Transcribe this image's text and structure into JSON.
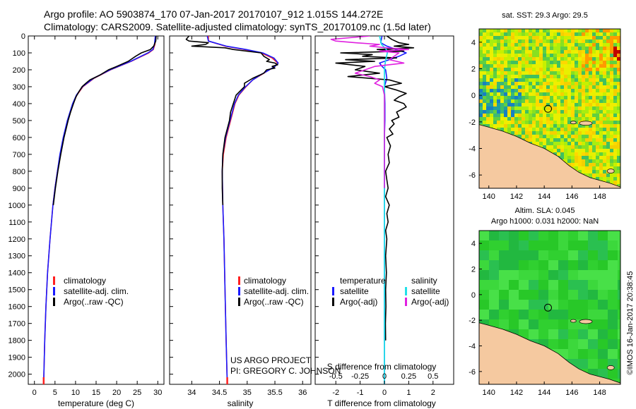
{
  "header": {
    "line1": "Argo profile: AO 5903874_170 07-Jan-2017 20170107_912 1.015S 144.272E",
    "line2": "Climatology: CARS2009. Satellite-adjusted climatology: synTS_20170109.nc (1.5d later)"
  },
  "colors": {
    "climatology": "#ff2020",
    "satellite": "#1a1aff",
    "argo": "#000000",
    "satellite_s": "#22e0e8",
    "argo_s": "#e020e0",
    "land": "#f5c9a0"
  },
  "depth_axis": {
    "ticks": [
      0,
      100,
      200,
      300,
      400,
      500,
      600,
      700,
      800,
      900,
      1000,
      1100,
      1200,
      1300,
      1400,
      1500,
      1600,
      1700,
      1800,
      1900,
      2000
    ],
    "range": [
      0,
      2060
    ]
  },
  "legend1": {
    "items": [
      "climatology",
      "satellite-adj. clim.",
      "Argo(..raw -QC)"
    ]
  },
  "legend2": {
    "items": [
      "climatology",
      "satellite-adj. clim.",
      "Argo(..raw -QC)"
    ]
  },
  "legend3": {
    "temperature_title": "temperature",
    "salinity_title": "salinity",
    "t_items": [
      "satellite",
      "Argo(-adj)"
    ],
    "s_items": [
      "satellite",
      "Argo(-adj)"
    ]
  },
  "credits": {
    "line1": "US ARGO PROJECT",
    "line2": "PI: GREGORY C. JOHNSON"
  },
  "maps": {
    "sst_title": "sat. SST: 29.3 Argo: 29.5",
    "sla_title1": "Altim. SLA: 0.045",
    "sla_title2": "Argo h1000: 0.031 h2000: NaN",
    "lon_ticks": [
      "140",
      "142",
      "144",
      "146",
      "148"
    ],
    "lon_range": [
      139.3,
      149.5
    ],
    "lat_ticks": [
      "4",
      "2",
      "0",
      "-2",
      "-4",
      "-6"
    ],
    "lat_range": [
      -7,
      5
    ],
    "float_position": {
      "lat": -1.015,
      "lon": 144.272
    }
  },
  "footer": {
    "stamp": "©IMOS 16-Jan-2017 20:38:45"
  },
  "chart_data": [
    {
      "type": "line",
      "xlabel": "temperature (deg C)",
      "ylabel": "depth",
      "xlim": [
        -1.5,
        31.5
      ],
      "xticks": [
        0,
        5,
        10,
        15,
        20,
        25,
        30
      ],
      "ylim": [
        2060,
        0
      ],
      "series": [
        {
          "name": "climatology",
          "depth": [
            0,
            50,
            80,
            100,
            150,
            200,
            250,
            300,
            350,
            400,
            500,
            600,
            700,
            800,
            900,
            1000,
            1200,
            1400,
            1600,
            1800,
            2000,
            2060
          ],
          "values": [
            29.5,
            29.3,
            28.9,
            27.8,
            23.5,
            18.5,
            14.5,
            11.8,
            10.3,
            9.4,
            8.1,
            7.1,
            6.3,
            5.6,
            5.0,
            4.5,
            3.8,
            3.2,
            2.8,
            2.5,
            2.3,
            2.25
          ]
        },
        {
          "name": "satellite-adj. clim.",
          "depth": [
            0,
            50,
            80,
            100,
            150,
            200,
            250,
            300,
            350,
            400,
            500,
            600,
            700,
            800,
            900,
            1000,
            1200,
            1400,
            1600,
            1800,
            2000,
            2060
          ],
          "values": [
            29.4,
            29.2,
            28.8,
            27.6,
            23.4,
            18.4,
            14.4,
            11.7,
            10.2,
            9.3,
            8.0,
            7.0,
            6.2,
            5.6,
            5.0,
            4.5,
            3.8,
            3.2,
            2.8,
            2.5,
            2.3,
            2.25
          ]
        },
        {
          "name": "Argo(..raw -QC)",
          "depth": [
            0,
            30,
            60,
            80,
            100,
            120,
            150,
            180,
            200,
            230,
            260,
            280,
            300,
            330,
            360,
            400,
            450,
            500,
            600,
            700,
            800,
            900,
            1000
          ],
          "values": [
            29.6,
            29.5,
            29.0,
            28.2,
            26.0,
            24.6,
            22.8,
            20.0,
            18.0,
            16.0,
            13.5,
            12.5,
            11.6,
            10.8,
            10.1,
            9.5,
            8.8,
            8.2,
            7.2,
            6.4,
            5.7,
            5.1,
            4.6
          ]
        }
      ]
    },
    {
      "type": "line",
      "xlabel": "salinity",
      "ylabel": "depth",
      "xlim": [
        33.6,
        36.15
      ],
      "xticks": [
        34,
        34.5,
        35,
        35.5,
        36
      ],
      "ylim": [
        2060,
        0
      ],
      "series": [
        {
          "name": "climatology",
          "depth": [
            0,
            30,
            60,
            80,
            100,
            130,
            160,
            180,
            200,
            230,
            260,
            300,
            350,
            400,
            500,
            600,
            700,
            800,
            1000,
            1200,
            1500,
            1800,
            2060
          ],
          "values": [
            34.3,
            34.3,
            34.6,
            34.95,
            35.25,
            35.45,
            35.55,
            35.5,
            35.4,
            35.25,
            35.1,
            34.98,
            34.85,
            34.78,
            34.7,
            34.62,
            34.57,
            34.55,
            34.56,
            34.58,
            34.6,
            34.62,
            34.64
          ]
        },
        {
          "name": "satellite-adj. clim.",
          "depth": [
            0,
            30,
            60,
            80,
            100,
            130,
            160,
            180,
            200,
            230,
            260,
            300,
            350,
            400,
            500,
            600,
            700,
            800,
            1000,
            1200,
            1500,
            1800,
            2060
          ],
          "values": [
            34.28,
            34.3,
            34.62,
            34.98,
            35.28,
            35.48,
            35.56,
            35.5,
            35.4,
            35.24,
            35.1,
            34.97,
            34.84,
            34.77,
            34.69,
            34.61,
            34.56,
            34.55,
            34.56,
            34.58,
            34.6,
            34.62,
            34.64
          ]
        },
        {
          "name": "Argo(..raw -QC)",
          "depth": [
            0,
            20,
            30,
            40,
            50,
            60,
            70,
            80,
            100,
            120,
            140,
            150,
            160,
            170,
            180,
            190,
            200,
            220,
            250,
            280,
            300,
            350,
            400,
            450,
            500,
            600,
            700,
            800,
            900,
            1000
          ],
          "values": [
            33.95,
            33.9,
            33.95,
            34.3,
            34.25,
            34.0,
            34.6,
            34.75,
            35.25,
            35.3,
            35.4,
            35.35,
            35.5,
            35.55,
            35.45,
            35.5,
            35.35,
            35.3,
            35.1,
            34.95,
            34.95,
            34.8,
            34.75,
            34.7,
            34.68,
            34.6,
            34.56,
            34.55,
            34.55,
            34.56
          ]
        }
      ]
    },
    {
      "type": "line",
      "xlabel": "T difference from climatology",
      "x2label": "S difference from climatology",
      "ylabel": "depth",
      "xlim": [
        -2.85,
        2.85
      ],
      "xticks": [
        -2,
        -1,
        0,
        1,
        2
      ],
      "x2ticks": [
        -0.5,
        -0.25,
        0,
        0.25,
        0.5
      ],
      "ylim": [
        2060,
        0
      ],
      "series": [
        {
          "name": "temperature satellite",
          "depth": [
            0,
            40,
            60,
            80,
            100,
            120,
            140,
            160,
            180,
            200,
            250,
            300,
            400,
            500,
            600,
            800,
            1000,
            1500,
            2060
          ],
          "values": [
            -0.1,
            -0.15,
            0.1,
            0.5,
            0.9,
            0.6,
            0.2,
            -0.2,
            -0.1,
            0.05,
            0.1,
            0.0,
            0.02,
            0.02,
            0.0,
            0.0,
            0.0,
            0.0,
            0.0
          ]
        },
        {
          "name": "temperature Argo(-adj)",
          "depth": [
            0,
            20,
            40,
            50,
            60,
            70,
            80,
            90,
            100,
            110,
            120,
            130,
            140,
            150,
            160,
            180,
            200,
            220,
            240,
            260,
            280,
            300,
            320,
            340,
            360,
            380,
            400,
            420,
            450,
            480,
            500,
            520,
            550,
            580,
            600,
            650,
            700,
            750,
            800,
            850,
            900,
            950,
            1000,
            1050,
            1100,
            1150,
            1200,
            1300,
            1400,
            1500,
            1600,
            1700,
            1800
          ],
          "values": [
            0.1,
            0.3,
            0.6,
            1.0,
            0.4,
            1.2,
            -0.3,
            0.8,
            -1.8,
            -0.5,
            -0.9,
            0.5,
            -1.6,
            -0.4,
            -2.0,
            -0.8,
            -1.2,
            -0.2,
            -1.5,
            0.2,
            0.7,
            0.0,
            0.5,
            0.9,
            0.6,
            0.4,
            0.8,
            0.9,
            0.5,
            0.6,
            0.3,
            0.4,
            0.2,
            0.35,
            0.1,
            0.25,
            0.15,
            0.2,
            0.05,
            0.1,
            0.15,
            0.05,
            0.2,
            0.1,
            0.15,
            0.05,
            0.1,
            0.05,
            0.08,
            0.05,
            0.06,
            0.04,
            0.05
          ]
        },
        {
          "name": "salinity satellite",
          "depth": [
            0,
            50,
            80,
            100,
            150,
            200,
            300,
            500,
            1000,
            2060
          ],
          "values": [
            -0.05,
            -0.03,
            0.02,
            0.03,
            0.01,
            0.0,
            0.0,
            0.0,
            0.0,
            0.0
          ]
        },
        {
          "name": "salinity Argo(-adj)",
          "depth": [
            0,
            20,
            30,
            40,
            50,
            60,
            70,
            80,
            90,
            100,
            120,
            140,
            160,
            180,
            200,
            220,
            240,
            260,
            280,
            300,
            350,
            400,
            500,
            600,
            700,
            800,
            900
          ],
          "values": [
            -0.15,
            -0.55,
            -0.5,
            -0.3,
            -0.05,
            -0.15,
            0.02,
            0.25,
            -0.05,
            0.15,
            0.1,
            0.05,
            0.2,
            -0.1,
            -0.2,
            -0.3,
            -0.15,
            -0.05,
            -0.1,
            -0.02,
            0.0,
            0.0,
            0.0,
            0.0,
            0.0,
            0.0,
            0.0
          ]
        }
      ]
    }
  ]
}
